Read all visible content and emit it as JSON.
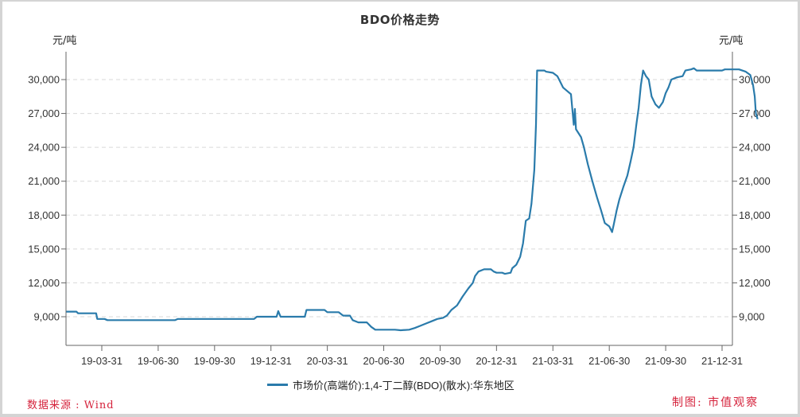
{
  "title": "BDO价格走势",
  "unit_left": "元/吨",
  "unit_right": "元/吨",
  "legend_label": "市场价(高端价):1,4-丁二醇(BDO)(散水):华东地区",
  "source": "数据来源 : Wind",
  "credit": "制图: 市值观察",
  "colors": {
    "series": "#2a7bab",
    "axis": "#666666",
    "grid": "#d9d9d9",
    "annotation": "#d5223b"
  },
  "chart_data": {
    "type": "line",
    "title": "BDO价格走势",
    "xlabel": "",
    "ylabel": "元/吨",
    "ylabel_right": "元/吨",
    "ylim": [
      6470,
      32460
    ],
    "y_ticks": [
      9000,
      12000,
      15000,
      18000,
      21000,
      24000,
      27000,
      30000
    ],
    "y_tick_labels": [
      "9,000",
      "12,000",
      "15,000",
      "18,000",
      "21,000",
      "24,000",
      "27,000",
      "30,000"
    ],
    "x_tick_labels": [
      "19-03-31",
      "19-06-30",
      "19-09-30",
      "19-12-31",
      "20-03-31",
      "20-06-30",
      "20-09-30",
      "20-12-31",
      "21-03-31",
      "21-06-30",
      "21-09-30",
      "21-12-31"
    ],
    "grid": {
      "horizontal": true,
      "style": "dashed"
    },
    "legend_position": "bottom",
    "dual_axis": true,
    "series": [
      {
        "name": "市场价(高端价):1,4-丁二醇(BDO)(散水):华东地区",
        "x_note": "x in fractional quarter-ticks: 0 = 19-03-31, 1 = 19-06-30, ... 11 = 21-12-31",
        "points": [
          [
            -0.63,
            9450
          ],
          [
            -0.45,
            9450
          ],
          [
            -0.42,
            9300
          ],
          [
            -0.1,
            9300
          ],
          [
            -0.08,
            8800
          ],
          [
            0.05,
            8800
          ],
          [
            0.1,
            8700
          ],
          [
            1.3,
            8700
          ],
          [
            1.35,
            8800
          ],
          [
            2.7,
            8800
          ],
          [
            2.75,
            9000
          ],
          [
            3.1,
            9000
          ],
          [
            3.13,
            9500
          ],
          [
            3.17,
            9000
          ],
          [
            3.6,
            9000
          ],
          [
            3.63,
            9600
          ],
          [
            3.95,
            9600
          ],
          [
            4.0,
            9400
          ],
          [
            4.2,
            9400
          ],
          [
            4.28,
            9100
          ],
          [
            4.4,
            9100
          ],
          [
            4.45,
            8700
          ],
          [
            4.55,
            8500
          ],
          [
            4.7,
            8500
          ],
          [
            4.78,
            8100
          ],
          [
            4.85,
            7850
          ],
          [
            5.2,
            7850
          ],
          [
            5.3,
            7800
          ],
          [
            5.45,
            7850
          ],
          [
            5.55,
            8000
          ],
          [
            5.65,
            8200
          ],
          [
            5.75,
            8400
          ],
          [
            5.85,
            8600
          ],
          [
            5.95,
            8800
          ],
          [
            6.05,
            8900
          ],
          [
            6.12,
            9100
          ],
          [
            6.2,
            9600
          ],
          [
            6.3,
            10000
          ],
          [
            6.4,
            10800
          ],
          [
            6.5,
            11500
          ],
          [
            6.58,
            12000
          ],
          [
            6.62,
            12600
          ],
          [
            6.68,
            13000
          ],
          [
            6.78,
            13200
          ],
          [
            6.9,
            13200
          ],
          [
            6.95,
            13000
          ],
          [
            7.0,
            12900
          ],
          [
            7.1,
            12900
          ],
          [
            7.15,
            12800
          ],
          [
            7.25,
            12900
          ],
          [
            7.28,
            13300
          ],
          [
            7.35,
            13600
          ],
          [
            7.42,
            14300
          ],
          [
            7.47,
            15500
          ],
          [
            7.52,
            17500
          ],
          [
            7.58,
            17700
          ],
          [
            7.62,
            19000
          ],
          [
            7.67,
            22000
          ],
          [
            7.7,
            26000
          ],
          [
            7.72,
            30800
          ],
          [
            7.85,
            30800
          ],
          [
            7.88,
            30700
          ],
          [
            8.0,
            30600
          ],
          [
            8.08,
            30300
          ],
          [
            8.12,
            29900
          ],
          [
            8.18,
            29300
          ],
          [
            8.25,
            29000
          ],
          [
            8.32,
            28700
          ],
          [
            8.37,
            26000
          ],
          [
            8.39,
            27400
          ],
          [
            8.41,
            25600
          ],
          [
            8.5,
            24900
          ],
          [
            8.55,
            24000
          ],
          [
            8.62,
            22500
          ],
          [
            8.7,
            21000
          ],
          [
            8.78,
            19600
          ],
          [
            8.85,
            18500
          ],
          [
            8.92,
            17300
          ],
          [
            9.0,
            17000
          ],
          [
            9.05,
            16500
          ],
          [
            9.08,
            17200
          ],
          [
            9.13,
            18400
          ],
          [
            9.18,
            19400
          ],
          [
            9.25,
            20500
          ],
          [
            9.32,
            21500
          ],
          [
            9.38,
            22800
          ],
          [
            9.43,
            24000
          ],
          [
            9.48,
            26000
          ],
          [
            9.52,
            27500
          ],
          [
            9.56,
            29500
          ],
          [
            9.6,
            30800
          ],
          [
            9.65,
            30300
          ],
          [
            9.7,
            30000
          ],
          [
            9.75,
            28500
          ],
          [
            9.82,
            27800
          ],
          [
            9.88,
            27500
          ],
          [
            9.95,
            28000
          ],
          [
            10.0,
            28800
          ],
          [
            10.05,
            29300
          ],
          [
            10.1,
            30000
          ],
          [
            10.2,
            30200
          ],
          [
            10.3,
            30300
          ],
          [
            10.35,
            30800
          ],
          [
            10.45,
            30900
          ],
          [
            10.5,
            31000
          ],
          [
            10.55,
            30800
          ],
          [
            11.0,
            30800
          ],
          [
            11.05,
            30900
          ],
          [
            11.3,
            30900
          ],
          [
            11.42,
            30700
          ],
          [
            11.5,
            30400
          ],
          [
            11.55,
            29500
          ],
          [
            11.58,
            28500
          ],
          [
            11.6,
            27000
          ],
          [
            11.63,
            26500
          ]
        ]
      }
    ]
  }
}
